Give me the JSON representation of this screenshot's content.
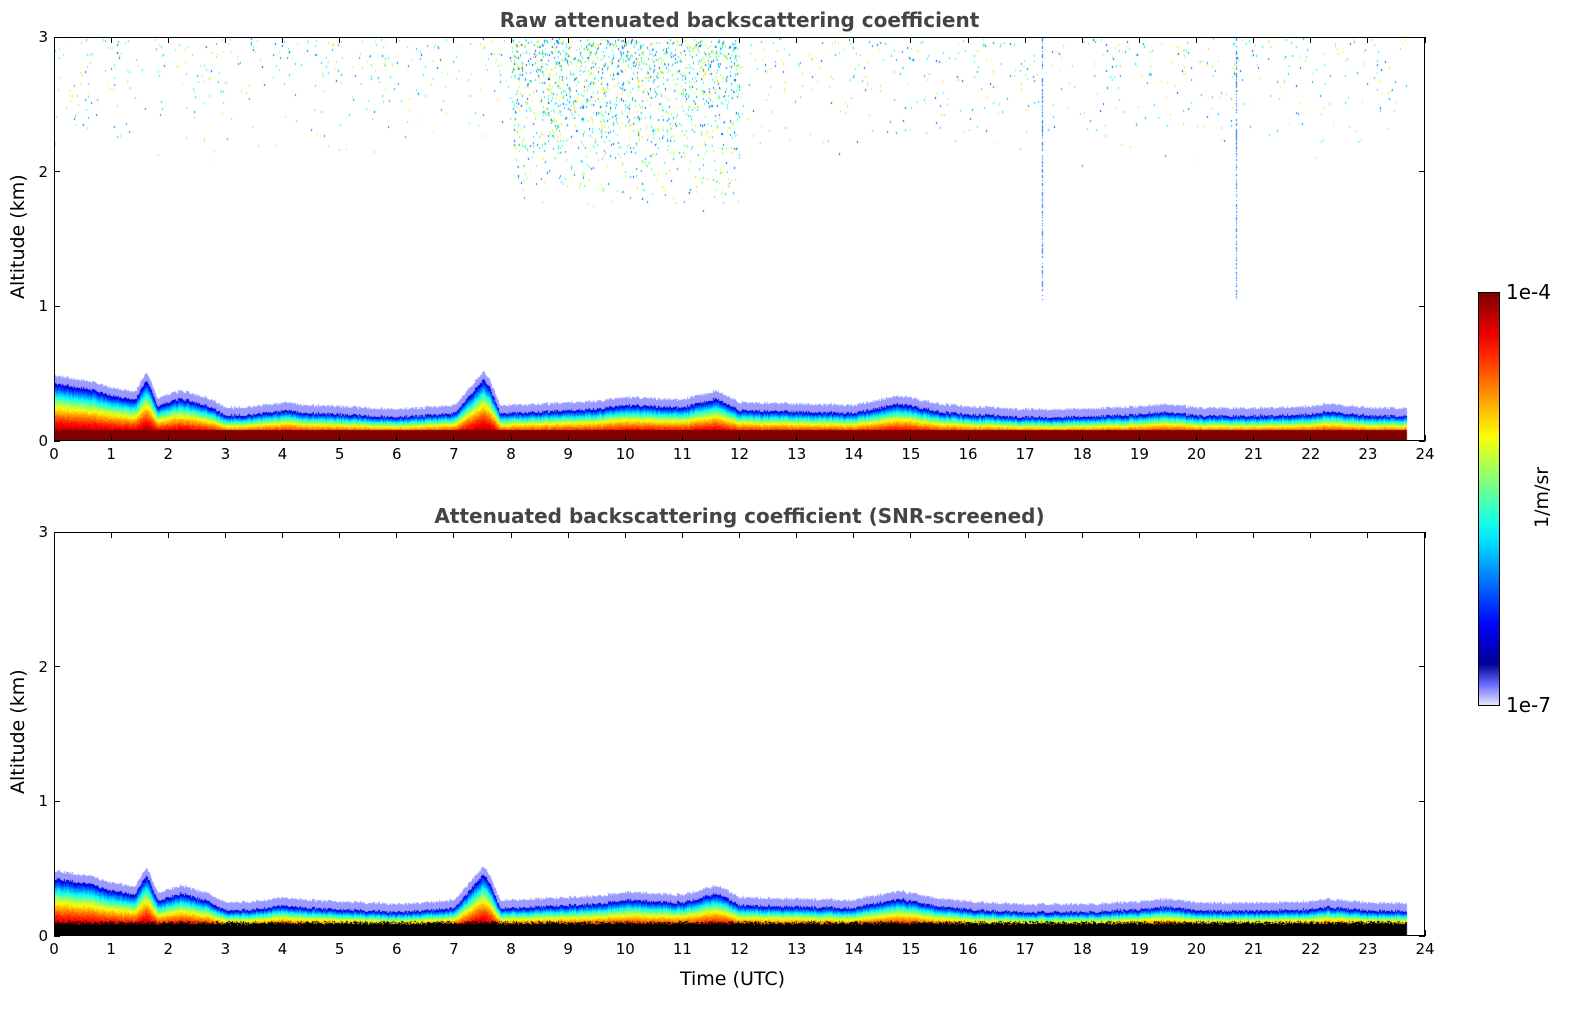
{
  "chart_data": [
    {
      "type": "heatmap",
      "title": "Raw attenuated backscattering coefficient",
      "xlabel": "",
      "ylabel": "Altitude (km)",
      "xlim": [
        0,
        24
      ],
      "ylim": [
        0,
        3
      ],
      "xticks": [
        "0",
        "1",
        "2",
        "3",
        "4",
        "5",
        "6",
        "7",
        "8",
        "9",
        "10",
        "11",
        "12",
        "13",
        "14",
        "15",
        "16",
        "17",
        "18",
        "19",
        "20",
        "21",
        "22",
        "23",
        "24"
      ],
      "yticks": [
        "0",
        "1",
        "2",
        "3"
      ],
      "data_end_time": 23.7,
      "aerosol_layer_top_km": {
        "time": [
          0,
          0.3,
          0.6,
          1.0,
          1.4,
          1.6,
          1.8,
          2.2,
          2.7,
          3.0,
          3.5,
          4.0,
          4.5,
          5.0,
          6.0,
          7.0,
          7.5,
          7.6,
          7.8,
          8.5,
          9.5,
          10.0,
          11.0,
          11.6,
          12.0,
          13.0,
          14.0,
          14.8,
          15.5,
          16.0,
          17.0,
          18.0,
          19.0,
          19.5,
          20.0,
          21.0,
          22.0,
          22.3,
          23.0,
          23.7
        ],
        "top": [
          0.42,
          0.4,
          0.38,
          0.33,
          0.3,
          0.45,
          0.25,
          0.31,
          0.25,
          0.18,
          0.19,
          0.22,
          0.2,
          0.19,
          0.17,
          0.2,
          0.45,
          0.4,
          0.2,
          0.21,
          0.23,
          0.26,
          0.24,
          0.31,
          0.22,
          0.21,
          0.2,
          0.27,
          0.21,
          0.19,
          0.17,
          0.17,
          0.19,
          0.21,
          0.18,
          0.18,
          0.19,
          0.21,
          0.18,
          0.18
        ]
      },
      "noise_region": {
        "time": [
          8,
          12
        ],
        "altitude_km": [
          1.7,
          3
        ]
      },
      "vertical_streaks_time": [
        17.3,
        20.7
      ]
    },
    {
      "type": "heatmap",
      "title": "Attenuated backscattering coefficient (SNR-screened)",
      "xlabel": "Time (UTC)",
      "ylabel": "Altitude (km)",
      "xlim": [
        0,
        24
      ],
      "ylim": [
        0,
        3
      ],
      "xticks": [
        "0",
        "1",
        "2",
        "3",
        "4",
        "5",
        "6",
        "7",
        "8",
        "9",
        "10",
        "11",
        "12",
        "13",
        "14",
        "15",
        "16",
        "17",
        "18",
        "19",
        "20",
        "21",
        "22",
        "23",
        "24"
      ],
      "yticks": [
        "0",
        "1",
        "2",
        "3"
      ],
      "screened_near_surface_km": 0.08
    }
  ],
  "colorbar": {
    "label": "1/m/sr",
    "min_label": "1e-7",
    "max_label": "1e-4",
    "scale": "log",
    "colormap": "jet"
  }
}
